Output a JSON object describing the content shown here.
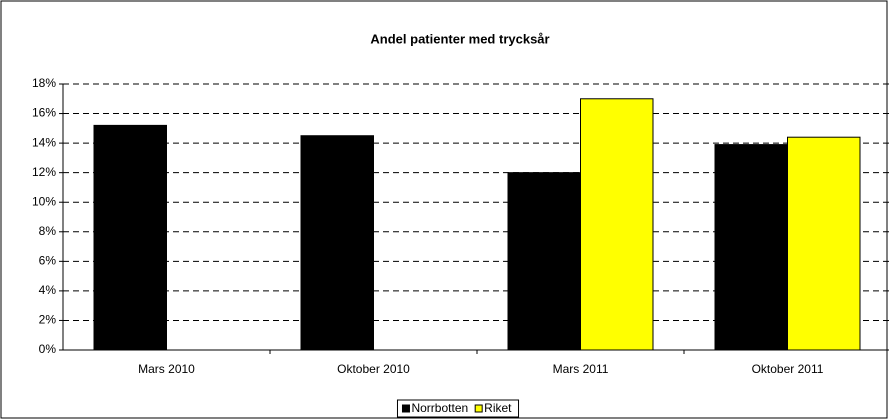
{
  "chart_data": {
    "type": "bar",
    "title": "Andel patienter med trycksår",
    "categories": [
      "Mars 2010",
      "Oktober 2010",
      "Mars 2011",
      "Oktober 2011"
    ],
    "series": [
      {
        "name": "Norrbotten",
        "color": "#000000",
        "values": [
          15.2,
          14.5,
          12.0,
          13.9
        ]
      },
      {
        "name": "Riket",
        "color": "#ffff00",
        "values": [
          null,
          null,
          17.0,
          14.4
        ]
      }
    ],
    "ylim": [
      0,
      18
    ],
    "yticks": [
      {
        "value": 0,
        "label": "0%"
      },
      {
        "value": 2,
        "label": "2%"
      },
      {
        "value": 4,
        "label": "4%"
      },
      {
        "value": 6,
        "label": "6%"
      },
      {
        "value": 8,
        "label": "8%"
      },
      {
        "value": 10,
        "label": "10%"
      },
      {
        "value": 12,
        "label": "12%"
      },
      {
        "value": 14,
        "label": "14%"
      },
      {
        "value": 16,
        "label": "16%"
      },
      {
        "value": 18,
        "label": "18%"
      }
    ],
    "grid": true,
    "legend": "bottom"
  }
}
